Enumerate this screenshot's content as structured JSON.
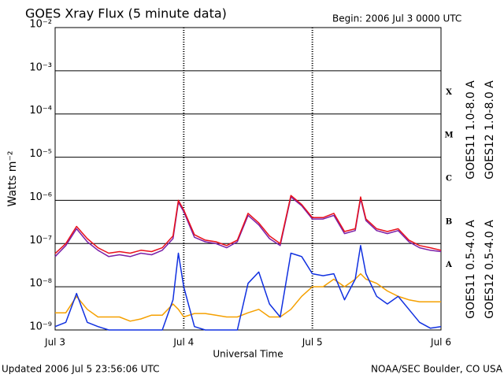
{
  "chart_data": {
    "type": "line",
    "title": "GOES Xray Flux (5 minute data)",
    "subtitle": "Begin:  2006 Jul 3 0000 UTC",
    "x_label": "Universal Time",
    "y_label": "Watts m⁻²",
    "footer_left": "Updated 2006 Jul  5 23:56:06 UTC",
    "footer_right": "NOAA/SEC Boulder, CO USA",
    "log_y": true,
    "grid": true,
    "x": [
      0,
      2,
      4,
      6,
      8,
      10,
      12,
      14,
      16,
      18,
      20,
      22,
      23,
      24,
      26,
      28,
      30,
      32,
      34,
      36,
      38,
      40,
      42,
      44,
      46,
      48,
      50,
      52,
      54,
      56,
      57,
      58,
      60,
      62,
      64,
      66,
      68,
      70,
      72
    ],
    "xlim": [
      0,
      72
    ],
    "xticks": [
      {
        "value": 0,
        "label": "Jul 3"
      },
      {
        "value": 24,
        "label": "Jul 4"
      },
      {
        "value": 48,
        "label": "Jul 5"
      },
      {
        "value": 72,
        "label": "Jul 6"
      }
    ],
    "ylim": [
      1e-09,
      0.01
    ],
    "yticks": [
      {
        "value": 1e-09,
        "label": "10⁻⁹"
      },
      {
        "value": 1e-08,
        "label": "10⁻⁸"
      },
      {
        "value": 1e-07,
        "label": "10⁻⁷"
      },
      {
        "value": 1e-06,
        "label": "10⁻⁶"
      },
      {
        "value": 1e-05,
        "label": "10⁻⁵"
      },
      {
        "value": 0.0001,
        "label": "10⁻⁴"
      },
      {
        "value": 0.001,
        "label": "10⁻³"
      },
      {
        "value": 0.01,
        "label": "10⁻²"
      }
    ],
    "flux_classes": [
      {
        "label": "X",
        "value": 0.0001
      },
      {
        "label": "M",
        "value": 1e-05
      },
      {
        "label": "C",
        "value": 1e-06
      },
      {
        "label": "B",
        "value": 1e-07
      },
      {
        "label": "A",
        "value": 1e-08
      }
    ],
    "series": [
      {
        "name": "GOES11 1.0-8.0 A",
        "color": "#7a1fa8",
        "values": [
          5e-08,
          9e-08,
          2.2e-07,
          1.1e-07,
          7e-08,
          5e-08,
          5.5e-08,
          5e-08,
          6e-08,
          5.5e-08,
          7e-08,
          1.3e-07,
          9e-07,
          5.5e-07,
          1.4e-07,
          1.1e-07,
          1e-07,
          8e-08,
          1.1e-07,
          4.5e-07,
          2.7e-07,
          1.3e-07,
          9e-08,
          1.2e-06,
          7.5e-07,
          3.7e-07,
          3.7e-07,
          4.5e-07,
          1.7e-07,
          2e-07,
          1.1e-06,
          3.4e-07,
          2e-07,
          1.7e-07,
          2e-07,
          1.1e-07,
          8e-08,
          7e-08,
          6.5e-08
        ]
      },
      {
        "name": "GOES12 1.0-8.0 A",
        "color": "#e8101c",
        "values": [
          5.9e-08,
          1e-07,
          2.5e-07,
          1.3e-07,
          8e-08,
          6e-08,
          6.5e-08,
          6e-08,
          7e-08,
          6.5e-08,
          8e-08,
          1.5e-07,
          1e-06,
          6e-07,
          1.6e-07,
          1.2e-07,
          1.1e-07,
          9e-08,
          1.2e-07,
          5e-07,
          3e-07,
          1.5e-07,
          1e-07,
          1.3e-06,
          8e-07,
          4e-07,
          4e-07,
          5e-07,
          1.9e-07,
          2.2e-07,
          1.2e-06,
          3.7e-07,
          2.2e-07,
          1.9e-07,
          2.2e-07,
          1.2e-07,
          9e-08,
          8e-08,
          7e-08
        ]
      },
      {
        "name": "GOES11 0.5-4.0 A",
        "color": "#f5a000",
        "values": [
          2.5e-09,
          2.5e-09,
          6e-09,
          3e-09,
          2e-09,
          2e-09,
          2e-09,
          1.6e-09,
          1.8e-09,
          2.2e-09,
          2.2e-09,
          4e-09,
          3e-09,
          2e-09,
          2.4e-09,
          2.4e-09,
          2.2e-09,
          2e-09,
          2e-09,
          2.5e-09,
          3e-09,
          2e-09,
          2e-09,
          3e-09,
          6e-09,
          1e-08,
          1e-08,
          1.5e-08,
          1e-08,
          1.5e-08,
          2e-08,
          1.5e-08,
          1.2e-08,
          8e-09,
          6e-09,
          5e-09,
          4.5e-09,
          4.5e-09,
          4.5e-09
        ]
      },
      {
        "name": "GOES12 0.5-4.0 A",
        "color": "#1030e0",
        "values": [
          1.2e-09,
          1.5e-09,
          7e-09,
          1.5e-09,
          1.2e-09,
          1e-09,
          1e-09,
          1e-09,
          1e-09,
          1e-09,
          1e-09,
          5e-09,
          6e-08,
          1e-08,
          1.2e-09,
          1e-09,
          1e-09,
          1e-09,
          1e-09,
          1.2e-08,
          2.2e-08,
          4e-09,
          2e-09,
          6e-08,
          5e-08,
          2e-08,
          1.8e-08,
          2e-08,
          5e-09,
          1.5e-08,
          9e-08,
          2e-08,
          6e-09,
          4e-09,
          6e-09,
          3e-09,
          1.5e-09,
          1.1e-09,
          1.2e-09
        ]
      }
    ]
  }
}
